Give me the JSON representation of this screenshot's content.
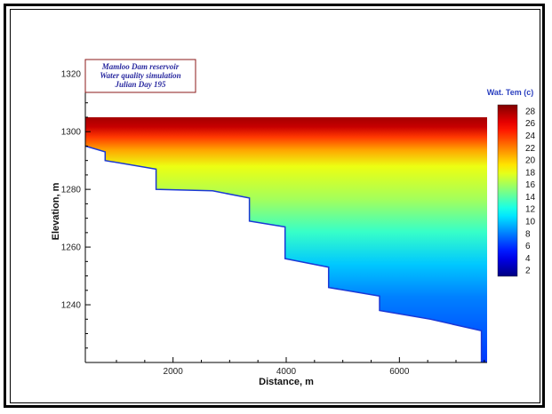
{
  "chart_data": {
    "type": "heatmap",
    "title": "",
    "annotation": [
      "Mamloo Dam reservoir",
      "Water quality simulation",
      "Julian Day  195"
    ],
    "xlabel": "Distance, m",
    "ylabel": "Elevation, m",
    "xlim": [
      450,
      7550
    ],
    "ylim": [
      1220,
      1325
    ],
    "x_ticks": [
      2000,
      4000,
      6000
    ],
    "y_ticks": [
      1240,
      1260,
      1280,
      1300,
      1320
    ],
    "colorbar": {
      "title": "Wat. Tem (c)",
      "ticks": [
        2,
        4,
        6,
        8,
        10,
        12,
        14,
        16,
        18,
        20,
        22,
        24,
        26,
        28
      ],
      "range": [
        1,
        29
      ]
    },
    "water_surface_elevation": 1305,
    "bed_profile": [
      {
        "x": 450,
        "y": 1295
      },
      {
        "x": 800,
        "y": 1293
      },
      {
        "x": 800,
        "y": 1290
      },
      {
        "x": 1700,
        "y": 1287
      },
      {
        "x": 1700,
        "y": 1280
      },
      {
        "x": 2700,
        "y": 1279.5
      },
      {
        "x": 3350,
        "y": 1277
      },
      {
        "x": 3350,
        "y": 1269
      },
      {
        "x": 3980,
        "y": 1267
      },
      {
        "x": 3980,
        "y": 1256
      },
      {
        "x": 4750,
        "y": 1253
      },
      {
        "x": 4750,
        "y": 1246
      },
      {
        "x": 5650,
        "y": 1243
      },
      {
        "x": 5650,
        "y": 1238
      },
      {
        "x": 6550,
        "y": 1235
      },
      {
        "x": 7450,
        "y": 1231
      },
      {
        "x": 7450,
        "y": 1220
      }
    ],
    "temperature_profile": [
      {
        "elevation": 1305,
        "temp": 28
      },
      {
        "elevation": 1302,
        "temp": 27
      },
      {
        "elevation": 1299,
        "temp": 24
      },
      {
        "elevation": 1295,
        "temp": 21
      },
      {
        "elevation": 1290,
        "temp": 18
      },
      {
        "elevation": 1280,
        "temp": 16
      },
      {
        "elevation": 1270,
        "temp": 13
      },
      {
        "elevation": 1260,
        "temp": 10
      },
      {
        "elevation": 1250,
        "temp": 8
      },
      {
        "elevation": 1240,
        "temp": 7
      },
      {
        "elevation": 1230,
        "temp": 6
      }
    ],
    "grid": false,
    "legend_position": "right"
  }
}
